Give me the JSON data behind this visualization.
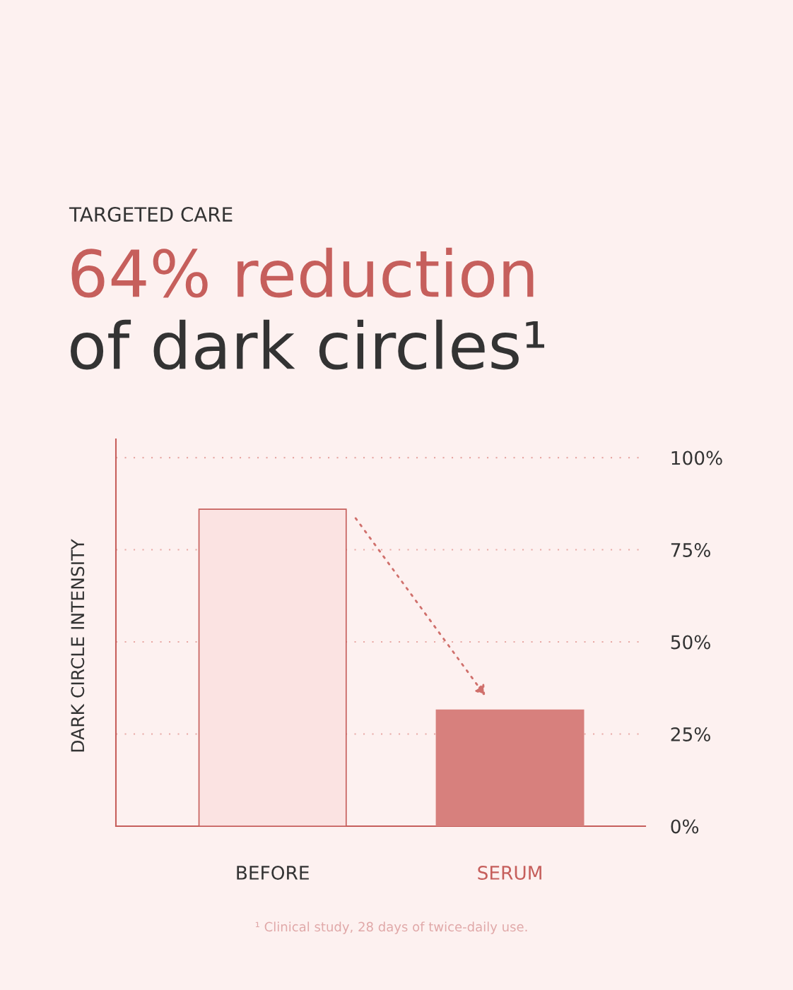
{
  "chart_data": {
    "type": "bar",
    "title": "64% reduction",
    "subtitle": "of dark circles¹",
    "ylabel": "DARK CIRCLE INTENSITY",
    "categories": [
      "BEFORE",
      "SERUM"
    ],
    "values": [
      86,
      31.5
    ],
    "colors": [
      "#fbe3e2",
      "#d7807d"
    ],
    "ylim": [
      0,
      105
    ],
    "yticks": [
      {
        "value": 0,
        "label": "0%"
      },
      {
        "value": 25,
        "label": "25%"
      },
      {
        "value": 50,
        "label": "50%"
      },
      {
        "value": 75,
        "label": "75%"
      },
      {
        "value": 100,
        "label": "100%"
      }
    ],
    "grid": "y",
    "annotations": [
      "TARGETED CARE",
      "¹ Clinical study, 28 days of twice-daily use."
    ]
  }
}
